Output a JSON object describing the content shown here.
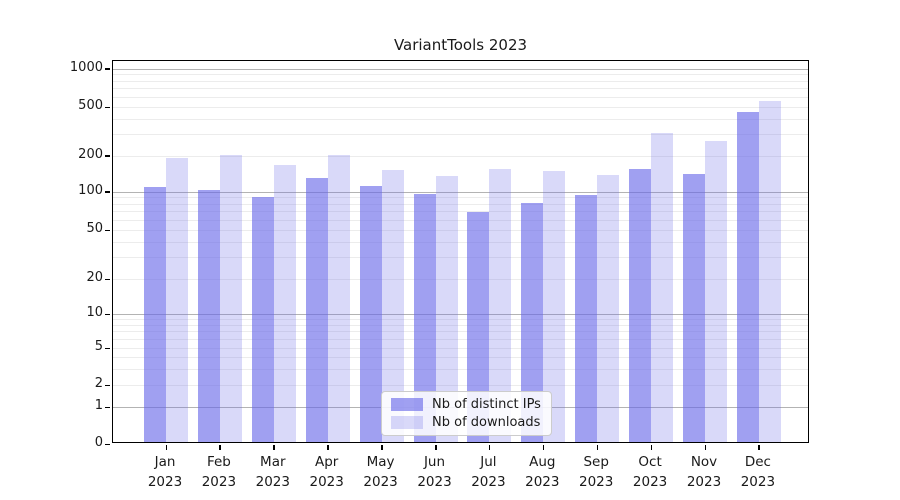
{
  "chart_data": {
    "type": "bar",
    "title": "VariantTools 2023",
    "categories": [
      "Jan 2023",
      "Feb 2023",
      "Mar 2023",
      "Apr 2023",
      "May 2023",
      "Jun 2023",
      "Jul 2023",
      "Aug 2023",
      "Sep 2023",
      "Oct 2023",
      "Nov 2023",
      "Dec 2023"
    ],
    "series": [
      {
        "name": "Nb of distinct IPs",
        "color": "rgba(102,102,232,0.62)",
        "values": [
          105,
          100,
          88,
          125,
          106,
          92,
          67,
          78,
          91,
          148,
          135,
          440
        ]
      },
      {
        "name": "Nb of downloads",
        "color": "rgba(102,102,232,0.25)",
        "values": [
          185,
          196,
          160,
          195,
          145,
          129,
          148,
          142,
          132,
          295,
          255,
          540
        ]
      }
    ],
    "xlabel": "",
    "ylabel": "",
    "yscale": "symlog",
    "yticks": [
      0,
      1,
      2,
      5,
      10,
      20,
      50,
      100,
      200,
      500,
      1000
    ],
    "ylim": [
      0,
      1150
    ],
    "grid": true,
    "legend_position": "lower center",
    "colors": {
      "grid_major": "#b3b3b3",
      "grid_minor": "#ececec",
      "axis": "#000000",
      "text": "#1a1a1a",
      "background": "#ffffff"
    }
  }
}
